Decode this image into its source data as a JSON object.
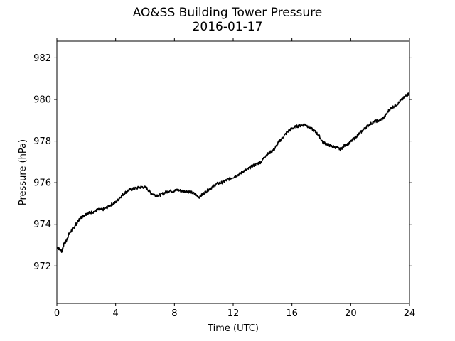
{
  "chart_data": {
    "type": "line",
    "title": "AO&SS Building Tower Pressure",
    "subtitle": "2016-01-17",
    "xlabel": "Time (UTC)",
    "ylabel": "Pressure (hPa)",
    "xlim": [
      0,
      24
    ],
    "ylim": [
      970.2,
      982.8
    ],
    "xticks": [
      0,
      4,
      8,
      12,
      16,
      20,
      24
    ],
    "xtick_labels": [
      "0",
      "4",
      "8",
      "12",
      "16",
      "20",
      "24"
    ],
    "yticks": [
      972,
      974,
      976,
      978,
      980,
      982
    ],
    "ytick_labels": [
      "972",
      "974",
      "976",
      "978",
      "980",
      "982"
    ],
    "grid": false,
    "line_color": "#000000",
    "series": [
      {
        "x": [
          0.0,
          0.2,
          0.35,
          0.5,
          0.65,
          0.8,
          1.0,
          1.2,
          1.4,
          1.6,
          1.8,
          2.0,
          2.2,
          2.5,
          2.8,
          3.1,
          3.4,
          3.7,
          4.0,
          4.3,
          4.6,
          4.9,
          5.2,
          5.5,
          5.8,
          6.1,
          6.4,
          6.7,
          7.0,
          7.3,
          7.6,
          7.9,
          8.2,
          8.5,
          8.8,
          9.1,
          9.4,
          9.7,
          10.0,
          10.3,
          10.6,
          10.9,
          11.2,
          11.5,
          11.8,
          12.1,
          12.4,
          12.7,
          13.0,
          13.3,
          13.6,
          13.9,
          14.2,
          14.5,
          14.8,
          15.1,
          15.4,
          15.7,
          16.0,
          16.3,
          16.6,
          16.9,
          17.2,
          17.5,
          17.8,
          18.1,
          18.4,
          18.7,
          19.0,
          19.3,
          19.6,
          19.9,
          20.2,
          20.5,
          20.8,
          21.1,
          21.4,
          21.7,
          22.0,
          22.3,
          22.6,
          22.9,
          23.2,
          23.5,
          23.8,
          24.0
        ],
        "values": [
          972.9,
          972.8,
          972.7,
          973.1,
          973.2,
          973.5,
          973.7,
          973.9,
          974.1,
          974.3,
          974.4,
          974.5,
          974.55,
          974.6,
          974.7,
          974.7,
          974.8,
          974.95,
          975.05,
          975.3,
          975.5,
          975.65,
          975.7,
          975.75,
          975.8,
          975.75,
          975.5,
          975.4,
          975.4,
          975.5,
          975.6,
          975.6,
          975.65,
          975.6,
          975.6,
          975.55,
          975.45,
          975.3,
          975.5,
          975.65,
          975.8,
          975.95,
          976.0,
          976.1,
          976.2,
          976.3,
          976.4,
          976.55,
          976.65,
          976.8,
          976.9,
          977.0,
          977.3,
          977.45,
          977.6,
          977.95,
          978.2,
          978.45,
          978.6,
          978.7,
          978.75,
          978.8,
          978.65,
          978.5,
          978.3,
          977.95,
          977.85,
          977.75,
          977.7,
          977.6,
          977.8,
          977.9,
          978.1,
          978.3,
          978.5,
          978.7,
          978.85,
          978.95,
          979.0,
          979.15,
          979.5,
          979.65,
          979.8,
          980.0,
          980.2,
          980.3
        ]
      }
    ]
  }
}
